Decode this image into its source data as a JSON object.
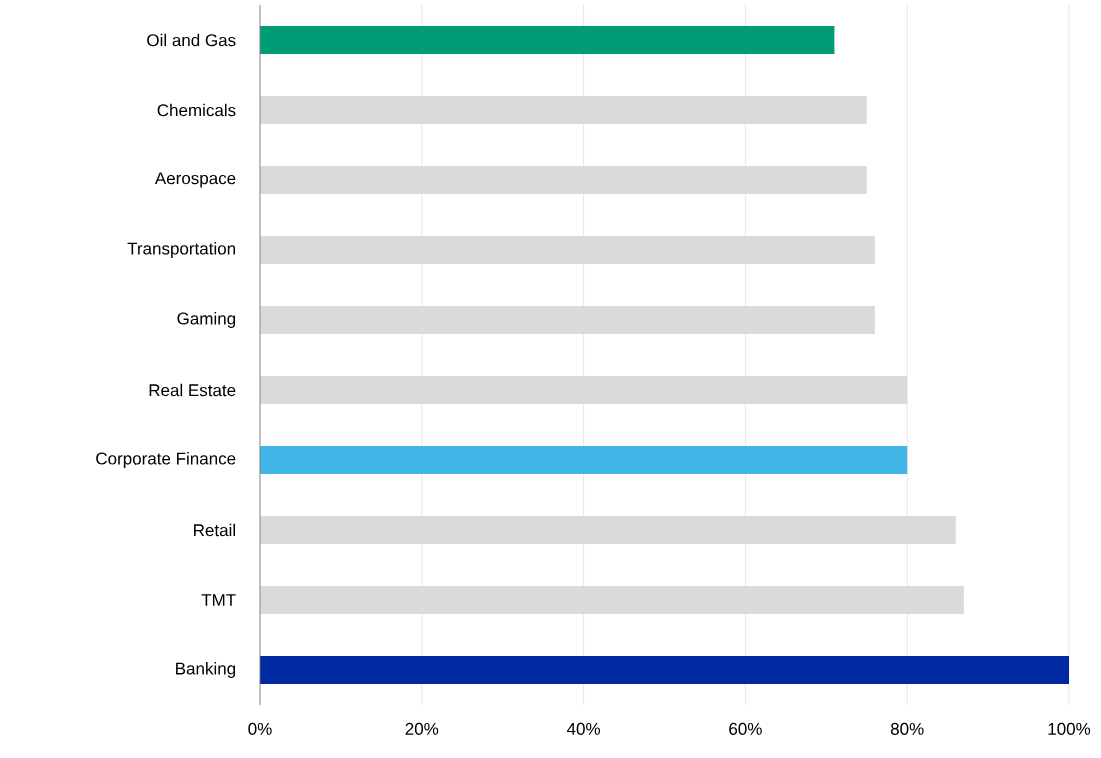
{
  "chart_data": {
    "type": "bar",
    "orientation": "horizontal",
    "categories": [
      "Oil and Gas",
      "Chemicals",
      "Aerospace",
      "Transportation",
      "Gaming",
      "Real Estate",
      "Corporate Finance",
      "Retail",
      "TMT",
      "Banking"
    ],
    "values": [
      71,
      75,
      75,
      76,
      76,
      80,
      80,
      86,
      87,
      100
    ],
    "colors": [
      "#009b77",
      "#d9dbd8",
      "#d9dbd8",
      "#d9dbd8",
      "#d9dbd8",
      "#d9dbd8",
      "#41b6e6",
      "#d9dbd8",
      "#d9dbd8",
      "#0028a0"
    ],
    "xlim": [
      0,
      100
    ],
    "xticks": [
      {
        "value": 0,
        "label": "0%"
      },
      {
        "value": 20,
        "label": "20%"
      },
      {
        "value": 40,
        "label": "40%"
      },
      {
        "value": 60,
        "label": "60%"
      },
      {
        "value": 80,
        "label": "80%"
      },
      {
        "value": 100,
        "label": "100%"
      }
    ],
    "grid": "x"
  }
}
